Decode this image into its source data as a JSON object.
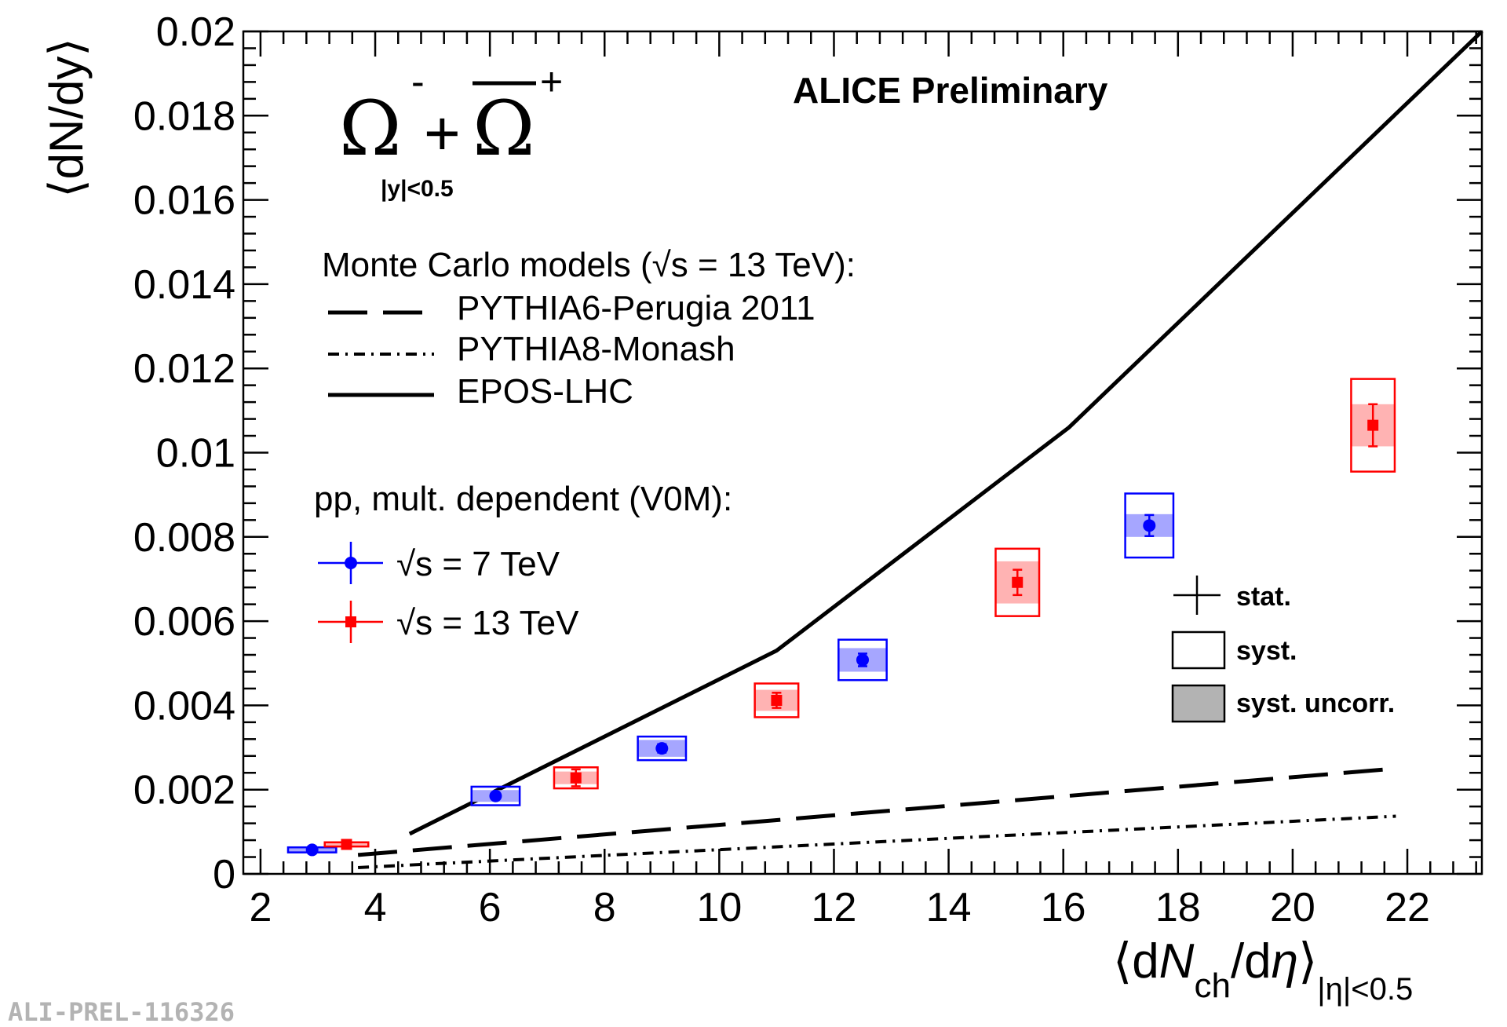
{
  "chart_data": {
    "type": "scatter",
    "title": "ALICE Preliminary",
    "particle_label": {
      "main": "Ω",
      "minus_sup": "-",
      "plus": "+",
      "anti": "Ω",
      "plus_sup": "+",
      "rapidity_cut": "|y|<0.5"
    },
    "xlabel": {
      "open": "⟨d",
      "n": "N",
      "sub": "ch",
      "slash": "/d",
      "eta": "η",
      "close": "⟩",
      "cut": "|η|<0.5"
    },
    "ylabel": "⟨dN/dy⟩",
    "xlim": [
      1.7,
      23.3
    ],
    "ylim": [
      0,
      0.02
    ],
    "x_ticks": [
      2,
      4,
      6,
      8,
      10,
      12,
      14,
      16,
      18,
      20,
      22
    ],
    "x_tick_labels": [
      "2",
      "4",
      "6",
      "8",
      "10",
      "12",
      "14",
      "16",
      "18",
      "20",
      "22"
    ],
    "y_ticks": [
      0,
      0.002,
      0.004,
      0.006,
      0.008,
      0.01,
      0.012,
      0.014,
      0.016,
      0.018,
      0.02
    ],
    "y_tick_labels": [
      "0",
      "0.002",
      "0.004",
      "0.006",
      "0.008",
      "0.01",
      "0.012",
      "0.014",
      "0.016",
      "0.018",
      "0.02"
    ],
    "models_header": "Monte Carlo models (√s = 13 TeV):",
    "models": [
      {
        "name": "PYTHIA6-Perugia 2011",
        "style": "dashed",
        "x": [
          3.7,
          21.8
        ],
        "y": [
          0.00045,
          0.0025
        ]
      },
      {
        "name": "PYTHIA8-Monash",
        "style": "dashdot",
        "x": [
          3.7,
          21.8
        ],
        "y": [
          0.00015,
          0.00137
        ]
      },
      {
        "name": "EPOS-LHC",
        "style": "solid",
        "x": [
          4.6,
          11.0,
          16.1,
          23.3
        ],
        "y": [
          0.00095,
          0.0053,
          0.0106,
          0.02
        ]
      }
    ],
    "data_header": "pp, mult. dependent (V0M):",
    "series": [
      {
        "name": "√s = 7 TeV",
        "color": "#0000ff",
        "marker": "circle",
        "x": [
          2.9,
          6.1,
          9.0,
          12.5,
          17.5
        ],
        "y": [
          0.00057,
          0.00185,
          0.00298,
          0.00508,
          0.00827
        ],
        "stat": [
          5e-05,
          8e-05,
          0.0001,
          0.00015,
          0.00025
        ],
        "syst": [
          6e-05,
          0.00022,
          0.00028,
          0.00048,
          0.00076
        ],
        "syst_uncorr": [
          4e-05,
          0.00014,
          0.0002,
          0.00028,
          0.00027
        ]
      },
      {
        "name": "√s = 13 TeV",
        "color": "#ff0000",
        "marker": "square",
        "x": [
          3.5,
          7.5,
          11.0,
          15.2,
          21.4
        ],
        "y": [
          0.0007,
          0.00228,
          0.00412,
          0.00692,
          0.01065
        ],
        "stat": [
          4e-05,
          0.0002,
          0.00018,
          0.0003,
          0.0005
        ],
        "syst": [
          5e-05,
          0.00025,
          0.0004,
          0.0008,
          0.0011
        ],
        "syst_uncorr": [
          3e-05,
          0.00015,
          0.00025,
          0.0005,
          0.0005
        ]
      }
    ],
    "uncertainty_legend": {
      "stat": "stat.",
      "syst": "syst.",
      "syst_uncorr": "syst. uncorr."
    }
  },
  "watermark": "ALI-PREL-116326",
  "colors": {
    "blue": "#0000ff",
    "red": "#ff0000",
    "blue_fill": "#a6a6ff",
    "red_fill": "#ffb3b3",
    "gray_fill": "#b3b3b3"
  }
}
